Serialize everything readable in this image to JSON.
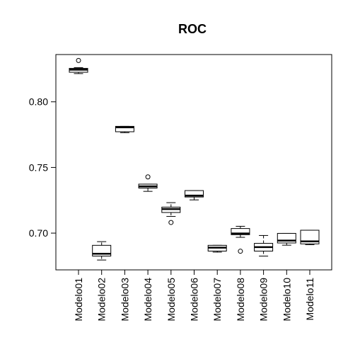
{
  "chart_data": {
    "type": "box",
    "title": "ROC",
    "xlabel": "",
    "ylabel": "",
    "ylim": [
      0.672,
      0.836
    ],
    "yticks": [
      "0.70",
      "0.75",
      "0.80"
    ],
    "grid": false,
    "categories": [
      "Modelo01",
      "Modelo02",
      "Modelo03",
      "Modelo04",
      "Modelo05",
      "Modelo06",
      "Modelo07",
      "Modelo08",
      "Modelo09",
      "Modelo10",
      "Modelo11"
    ],
    "boxes": [
      {
        "category": "Modelo01",
        "min": 0.8215,
        "q1": 0.8225,
        "median": 0.8245,
        "q3": 0.8255,
        "max": 0.826,
        "outliers": [
          0.8315
        ]
      },
      {
        "category": "Modelo02",
        "min": 0.6795,
        "q1": 0.6825,
        "median": 0.6843,
        "q3": 0.6907,
        "max": 0.6935,
        "outliers": []
      },
      {
        "category": "Modelo03",
        "min": 0.7765,
        "q1": 0.7772,
        "median": 0.7806,
        "q3": 0.7813,
        "max": 0.7813,
        "outliers": []
      },
      {
        "category": "Modelo04",
        "min": 0.7318,
        "q1": 0.7343,
        "median": 0.7356,
        "q3": 0.7373,
        "max": 0.7373,
        "outliers": [
          0.7428
        ]
      },
      {
        "category": "Modelo05",
        "min": 0.7127,
        "q1": 0.7157,
        "median": 0.7183,
        "q3": 0.7198,
        "max": 0.7232,
        "outliers": [
          0.7081
        ]
      },
      {
        "category": "Modelo06",
        "min": 0.7253,
        "q1": 0.7275,
        "median": 0.7286,
        "q3": 0.7324,
        "max": 0.7324,
        "outliers": []
      },
      {
        "category": "Modelo07",
        "min": 0.6855,
        "q1": 0.6863,
        "median": 0.6889,
        "q3": 0.6907,
        "max": 0.6907,
        "outliers": []
      },
      {
        "category": "Modelo08",
        "min": 0.6968,
        "q1": 0.6988,
        "median": 0.6997,
        "q3": 0.7035,
        "max": 0.7052,
        "outliers": [
          0.6862
        ]
      },
      {
        "category": "Modelo09",
        "min": 0.6825,
        "q1": 0.6863,
        "median": 0.6893,
        "q3": 0.6922,
        "max": 0.6982,
        "outliers": []
      },
      {
        "category": "Modelo10",
        "min": 0.6908,
        "q1": 0.6925,
        "median": 0.6943,
        "q3": 0.6998,
        "max": 0.6998,
        "outliers": []
      },
      {
        "category": "Modelo11",
        "min": 0.6912,
        "q1": 0.6918,
        "median": 0.6937,
        "q3": 0.7022,
        "max": 0.7022,
        "outliers": []
      }
    ]
  }
}
